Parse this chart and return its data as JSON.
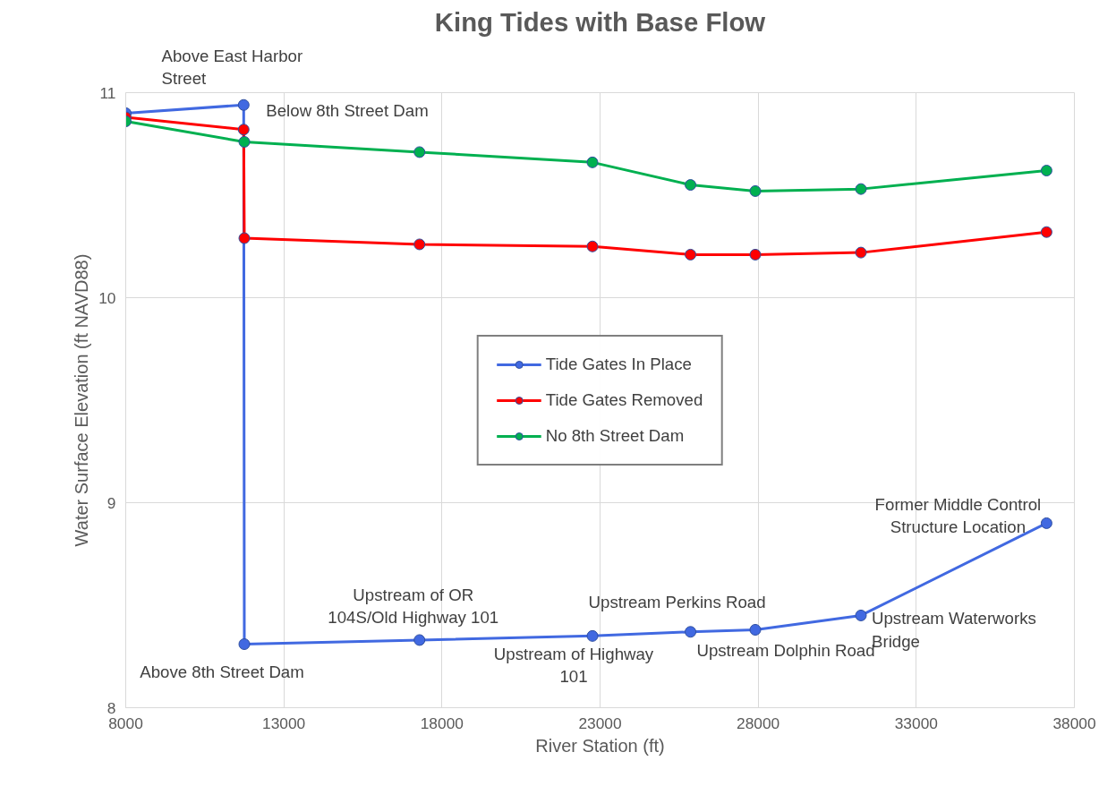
{
  "chart_data": {
    "type": "line",
    "title": "King Tides with Base Flow",
    "xlabel": "River Station (ft)",
    "ylabel": "Water Surface Elevation (ft NAVD88)",
    "xlim": [
      8000,
      38000
    ],
    "xticks": [
      8000,
      13000,
      18000,
      23000,
      28000,
      33000,
      38000
    ],
    "ylim": [
      8,
      11
    ],
    "yticks": [
      8,
      9,
      10,
      11
    ],
    "grid": true,
    "legend": "center",
    "marker": "circle",
    "line_style": "solid",
    "series": [
      {
        "name": "Tide Gates In Place",
        "color": "#4169e1",
        "x": [
          8000,
          11730,
          11750,
          17290,
          22760,
          25860,
          27910,
          31250,
          37120
        ],
        "values": [
          10.9,
          10.94,
          8.31,
          8.33,
          8.35,
          8.37,
          8.38,
          8.45,
          8.9
        ]
      },
      {
        "name": "Tide Gates Removed",
        "color": "#ff0000",
        "x": [
          8000,
          11730,
          11750,
          17290,
          22760,
          25860,
          27910,
          31250,
          37120
        ],
        "values": [
          10.88,
          10.82,
          10.29,
          10.26,
          10.25,
          10.21,
          10.21,
          10.22,
          10.32
        ]
      },
      {
        "name": "No 8th Street Dam",
        "color": "#00b050",
        "x": [
          8000,
          11750,
          17290,
          22760,
          25860,
          27910,
          31250,
          37120
        ],
        "values": [
          10.86,
          10.76,
          10.71,
          10.66,
          10.55,
          10.52,
          10.53,
          10.62
        ]
      }
    ],
    "annotations": [
      "Above East Harbor\nStreet",
      {
        "text": "Below 8th Street Dam",
        "x": 11730,
        "y": 10.94
      },
      {
        "text": "Above 8th Street Dam",
        "x": 11750,
        "y": 8.31
      },
      {
        "text": "Upstream of OR\n104S/Old Highway 101",
        "x": 17290,
        "y": 8.33
      },
      {
        "text": "Upstream of Highway\n101",
        "x": 22760,
        "y": 8.35
      },
      {
        "text": "Upstream Perkins Road",
        "x": 25860,
        "y": 8.37
      },
      {
        "text": "Upstream Dolphin Road",
        "x": 27910,
        "y": 8.38
      },
      {
        "text": "Upstream Waterworks\nBridge",
        "x": 31250,
        "y": 8.45
      },
      {
        "text": "Former Middle Control\nStructure Location",
        "x": 37120,
        "y": 8.9
      }
    ]
  }
}
